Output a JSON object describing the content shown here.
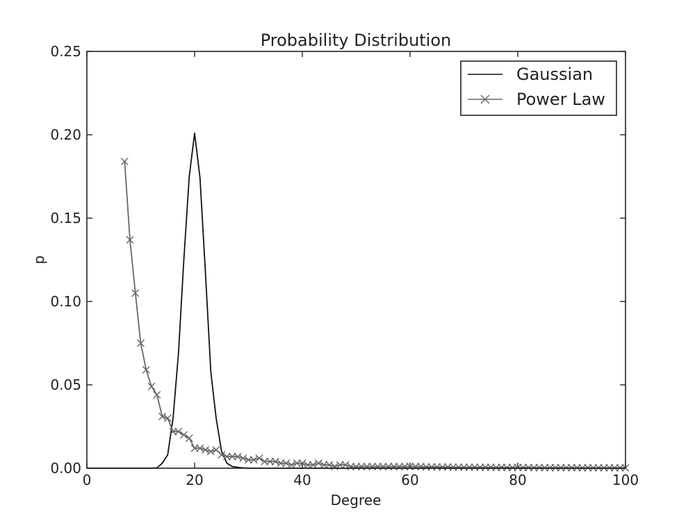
{
  "chart_data": {
    "type": "line",
    "title": "Probability Distribution",
    "xlabel": "Degree",
    "ylabel": "p",
    "xlim": [
      0,
      100
    ],
    "ylim": [
      0,
      0.25
    ],
    "xticks": [
      0,
      20,
      40,
      60,
      80,
      100
    ],
    "xtick_labels": [
      "0",
      "20",
      "40",
      "60",
      "80",
      "100"
    ],
    "yticks": [
      0,
      0.05,
      0.1,
      0.15,
      0.2,
      0.25
    ],
    "ytick_labels": [
      "0.00",
      "0.05",
      "0.10",
      "0.15",
      "0.20",
      "0.25"
    ],
    "grid": false,
    "legend_position": "top-right",
    "series": [
      {
        "name": "Gaussian",
        "color": "#111111",
        "marker": "none",
        "x": [
          0,
          10,
          12,
          13,
          14,
          15,
          16,
          17,
          18,
          19,
          20,
          21,
          22,
          23,
          24,
          25,
          26,
          27,
          28,
          29,
          30,
          35,
          40,
          50,
          60,
          70,
          80,
          90,
          100
        ],
        "y": [
          0,
          0,
          0,
          0.0002,
          0.003,
          0.008,
          0.03,
          0.069,
          0.125,
          0.175,
          0.201,
          0.174,
          0.118,
          0.058,
          0.03,
          0.01,
          0.003,
          0.001,
          0.0005,
          0.0002,
          0,
          0,
          0,
          0,
          0,
          0,
          0,
          0,
          0
        ]
      },
      {
        "name": "Power Law",
        "color": "#666666",
        "marker": "x",
        "x": [
          7,
          8,
          9,
          10,
          11,
          12,
          13,
          14,
          15,
          16,
          17,
          18,
          19,
          20,
          21,
          22,
          23,
          24,
          25,
          26,
          27,
          28,
          29,
          30,
          31,
          32,
          33,
          34,
          35,
          36,
          37,
          38,
          39,
          40,
          41,
          42,
          43,
          44,
          45,
          46,
          47,
          48,
          49,
          50,
          51,
          52,
          53,
          54,
          55,
          56,
          57,
          58,
          59,
          60,
          61,
          62,
          63,
          64,
          65,
          66,
          67,
          68,
          69,
          70,
          71,
          72,
          73,
          74,
          75,
          76,
          77,
          78,
          79,
          80,
          81,
          82,
          83,
          84,
          85,
          86,
          87,
          88,
          89,
          90,
          91,
          92,
          93,
          94,
          95,
          96,
          97,
          98,
          99,
          100
        ],
        "y": [
          0.184,
          0.137,
          0.105,
          0.075,
          0.059,
          0.049,
          0.044,
          0.031,
          0.03,
          0.022,
          0.022,
          0.02,
          0.018,
          0.012,
          0.012,
          0.011,
          0.01,
          0.011,
          0.008,
          0.007,
          0.007,
          0.007,
          0.006,
          0.005,
          0.005,
          0.006,
          0.004,
          0.004,
          0.004,
          0.003,
          0.003,
          0.002,
          0.003,
          0.003,
          0.002,
          0.002,
          0.003,
          0.002,
          0.002,
          0.001,
          0.002,
          0.002,
          0.001,
          0.001,
          0.001,
          0.001,
          0.001,
          0.001,
          0.001,
          0.001,
          0.001,
          0.001,
          0.001,
          0.001,
          0.001,
          0.001,
          0.0008,
          0.0008,
          0.0008,
          0.0007,
          0.0008,
          0.0006,
          0.0006,
          0.0006,
          0.0005,
          0.0006,
          0.0005,
          0.0005,
          0.0005,
          0.0004,
          0.0005,
          0.0004,
          0.0004,
          0.0004,
          0.0004,
          0.0004,
          0.0003,
          0.0004,
          0.0003,
          0.0003,
          0.0003,
          0.0003,
          0.0003,
          0.0003,
          0.0003,
          0.0002,
          0.0003,
          0.0002,
          0.0003,
          0.0002,
          0.0003,
          0.0002,
          0.0003,
          0.0002
        ]
      }
    ]
  }
}
